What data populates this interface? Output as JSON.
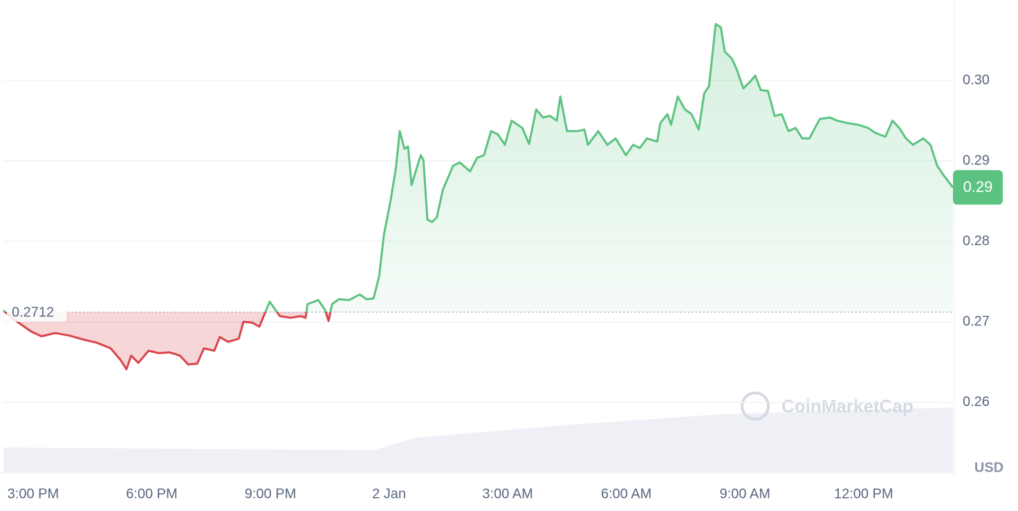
{
  "chart_data": {
    "type": "baseline-line",
    "x": [
      14.25,
      14.51,
      14.95,
      15.21,
      15.56,
      15.91,
      16.26,
      16.61,
      16.96,
      17.22,
      17.36,
      17.48,
      17.66,
      17.92,
      18.18,
      18.45,
      18.71,
      18.92,
      19.15,
      19.32,
      19.58,
      19.72,
      19.93,
      20.2,
      20.32,
      20.54,
      20.72,
      20.98,
      21.24,
      21.51,
      21.77,
      21.89,
      21.94,
      22.21,
      22.38,
      22.47,
      22.56,
      22.73,
      22.99,
      23.26,
      23.43,
      23.61,
      23.75,
      23.87,
      24.04,
      24.17,
      24.27,
      24.39,
      24.48,
      24.57,
      24.8,
      24.87,
      24.97,
      25.09,
      25.21,
      25.36,
      25.62,
      25.79,
      26.05,
      26.23,
      26.4,
      26.58,
      26.75,
      26.93,
      27.1,
      27.37,
      27.54,
      27.72,
      27.89,
      28.07,
      28.24,
      28.33,
      28.5,
      28.77,
      28.94,
      29.03,
      29.29,
      29.52,
      29.73,
      29.99,
      30.17,
      30.34,
      30.52,
      30.78,
      30.86,
      31.04,
      31.13,
      31.3,
      31.48,
      31.65,
      31.83,
      31.97,
      32.09,
      32.26,
      32.39,
      32.49,
      32.67,
      32.79,
      32.96,
      33.14,
      33.26,
      33.4,
      33.58,
      33.75,
      33.93,
      34.1,
      34.28,
      34.45,
      34.63,
      34.89,
      35.15,
      35.33,
      35.59,
      35.85,
      36.11,
      36.29,
      36.55,
      36.73,
      36.9,
      37.07,
      37.25,
      37.51,
      37.69,
      37.86,
      38.04,
      38.26
    ],
    "values": [
      0.2714,
      0.2703,
      0.2688,
      0.2682,
      0.2686,
      0.2683,
      0.2678,
      0.2674,
      0.2667,
      0.2652,
      0.2641,
      0.2658,
      0.2649,
      0.2664,
      0.2661,
      0.2662,
      0.2658,
      0.2647,
      0.2648,
      0.2667,
      0.2664,
      0.2681,
      0.2675,
      0.2679,
      0.27,
      0.2699,
      0.2694,
      0.2725,
      0.2707,
      0.2705,
      0.2707,
      0.2705,
      0.2722,
      0.2727,
      0.2715,
      0.2701,
      0.2722,
      0.2728,
      0.2727,
      0.2734,
      0.2728,
      0.2729,
      0.2757,
      0.2808,
      0.2851,
      0.289,
      0.2937,
      0.2915,
      0.2918,
      0.287,
      0.2907,
      0.2901,
      0.2827,
      0.2824,
      0.283,
      0.2864,
      0.2894,
      0.2898,
      0.2887,
      0.2904,
      0.2907,
      0.2937,
      0.2933,
      0.292,
      0.295,
      0.2941,
      0.2921,
      0.2964,
      0.2954,
      0.2956,
      0.295,
      0.298,
      0.2937,
      0.2937,
      0.2939,
      0.292,
      0.2937,
      0.292,
      0.2928,
      0.2907,
      0.292,
      0.2916,
      0.2928,
      0.2924,
      0.2947,
      0.2958,
      0.2945,
      0.298,
      0.2964,
      0.2958,
      0.2939,
      0.2984,
      0.2993,
      0.307,
      0.3066,
      0.3036,
      0.3027,
      0.3014,
      0.299,
      0.2999,
      0.3006,
      0.2988,
      0.2987,
      0.2956,
      0.2958,
      0.2937,
      0.2941,
      0.2928,
      0.2928,
      0.2952,
      0.2954,
      0.295,
      0.2947,
      0.2945,
      0.2941,
      0.2935,
      0.293,
      0.295,
      0.2941,
      0.2928,
      0.292,
      0.2928,
      0.292,
      0.2894,
      0.2881,
      0.2867
    ],
    "baseline": 0.2712,
    "current_price": {
      "value": 0.2867,
      "label": "0.29"
    },
    "color_up": "#5cc281",
    "color_down": "#d9434b",
    "xlim": [
      14.25,
      38.26
    ],
    "xticks": [
      {
        "value": 15,
        "label": "3:00 PM"
      },
      {
        "value": 18,
        "label": "6:00 PM"
      },
      {
        "value": 21,
        "label": "9:00 PM"
      },
      {
        "value": 24,
        "label": "2 Jan"
      },
      {
        "value": 27,
        "label": "3:00 AM"
      },
      {
        "value": 30,
        "label": "6:00 AM"
      },
      {
        "value": 33,
        "label": "9:00 AM"
      },
      {
        "value": 36,
        "label": "12:00 PM"
      }
    ],
    "ylim": [
      0.2512,
      0.31
    ],
    "yticks": [
      0.26,
      0.27,
      0.28,
      0.29,
      {
        "value": 0.3,
        "label": "0.30"
      }
    ],
    "grid": true,
    "unit": "USD",
    "watermark": "CoinMarketCap"
  }
}
